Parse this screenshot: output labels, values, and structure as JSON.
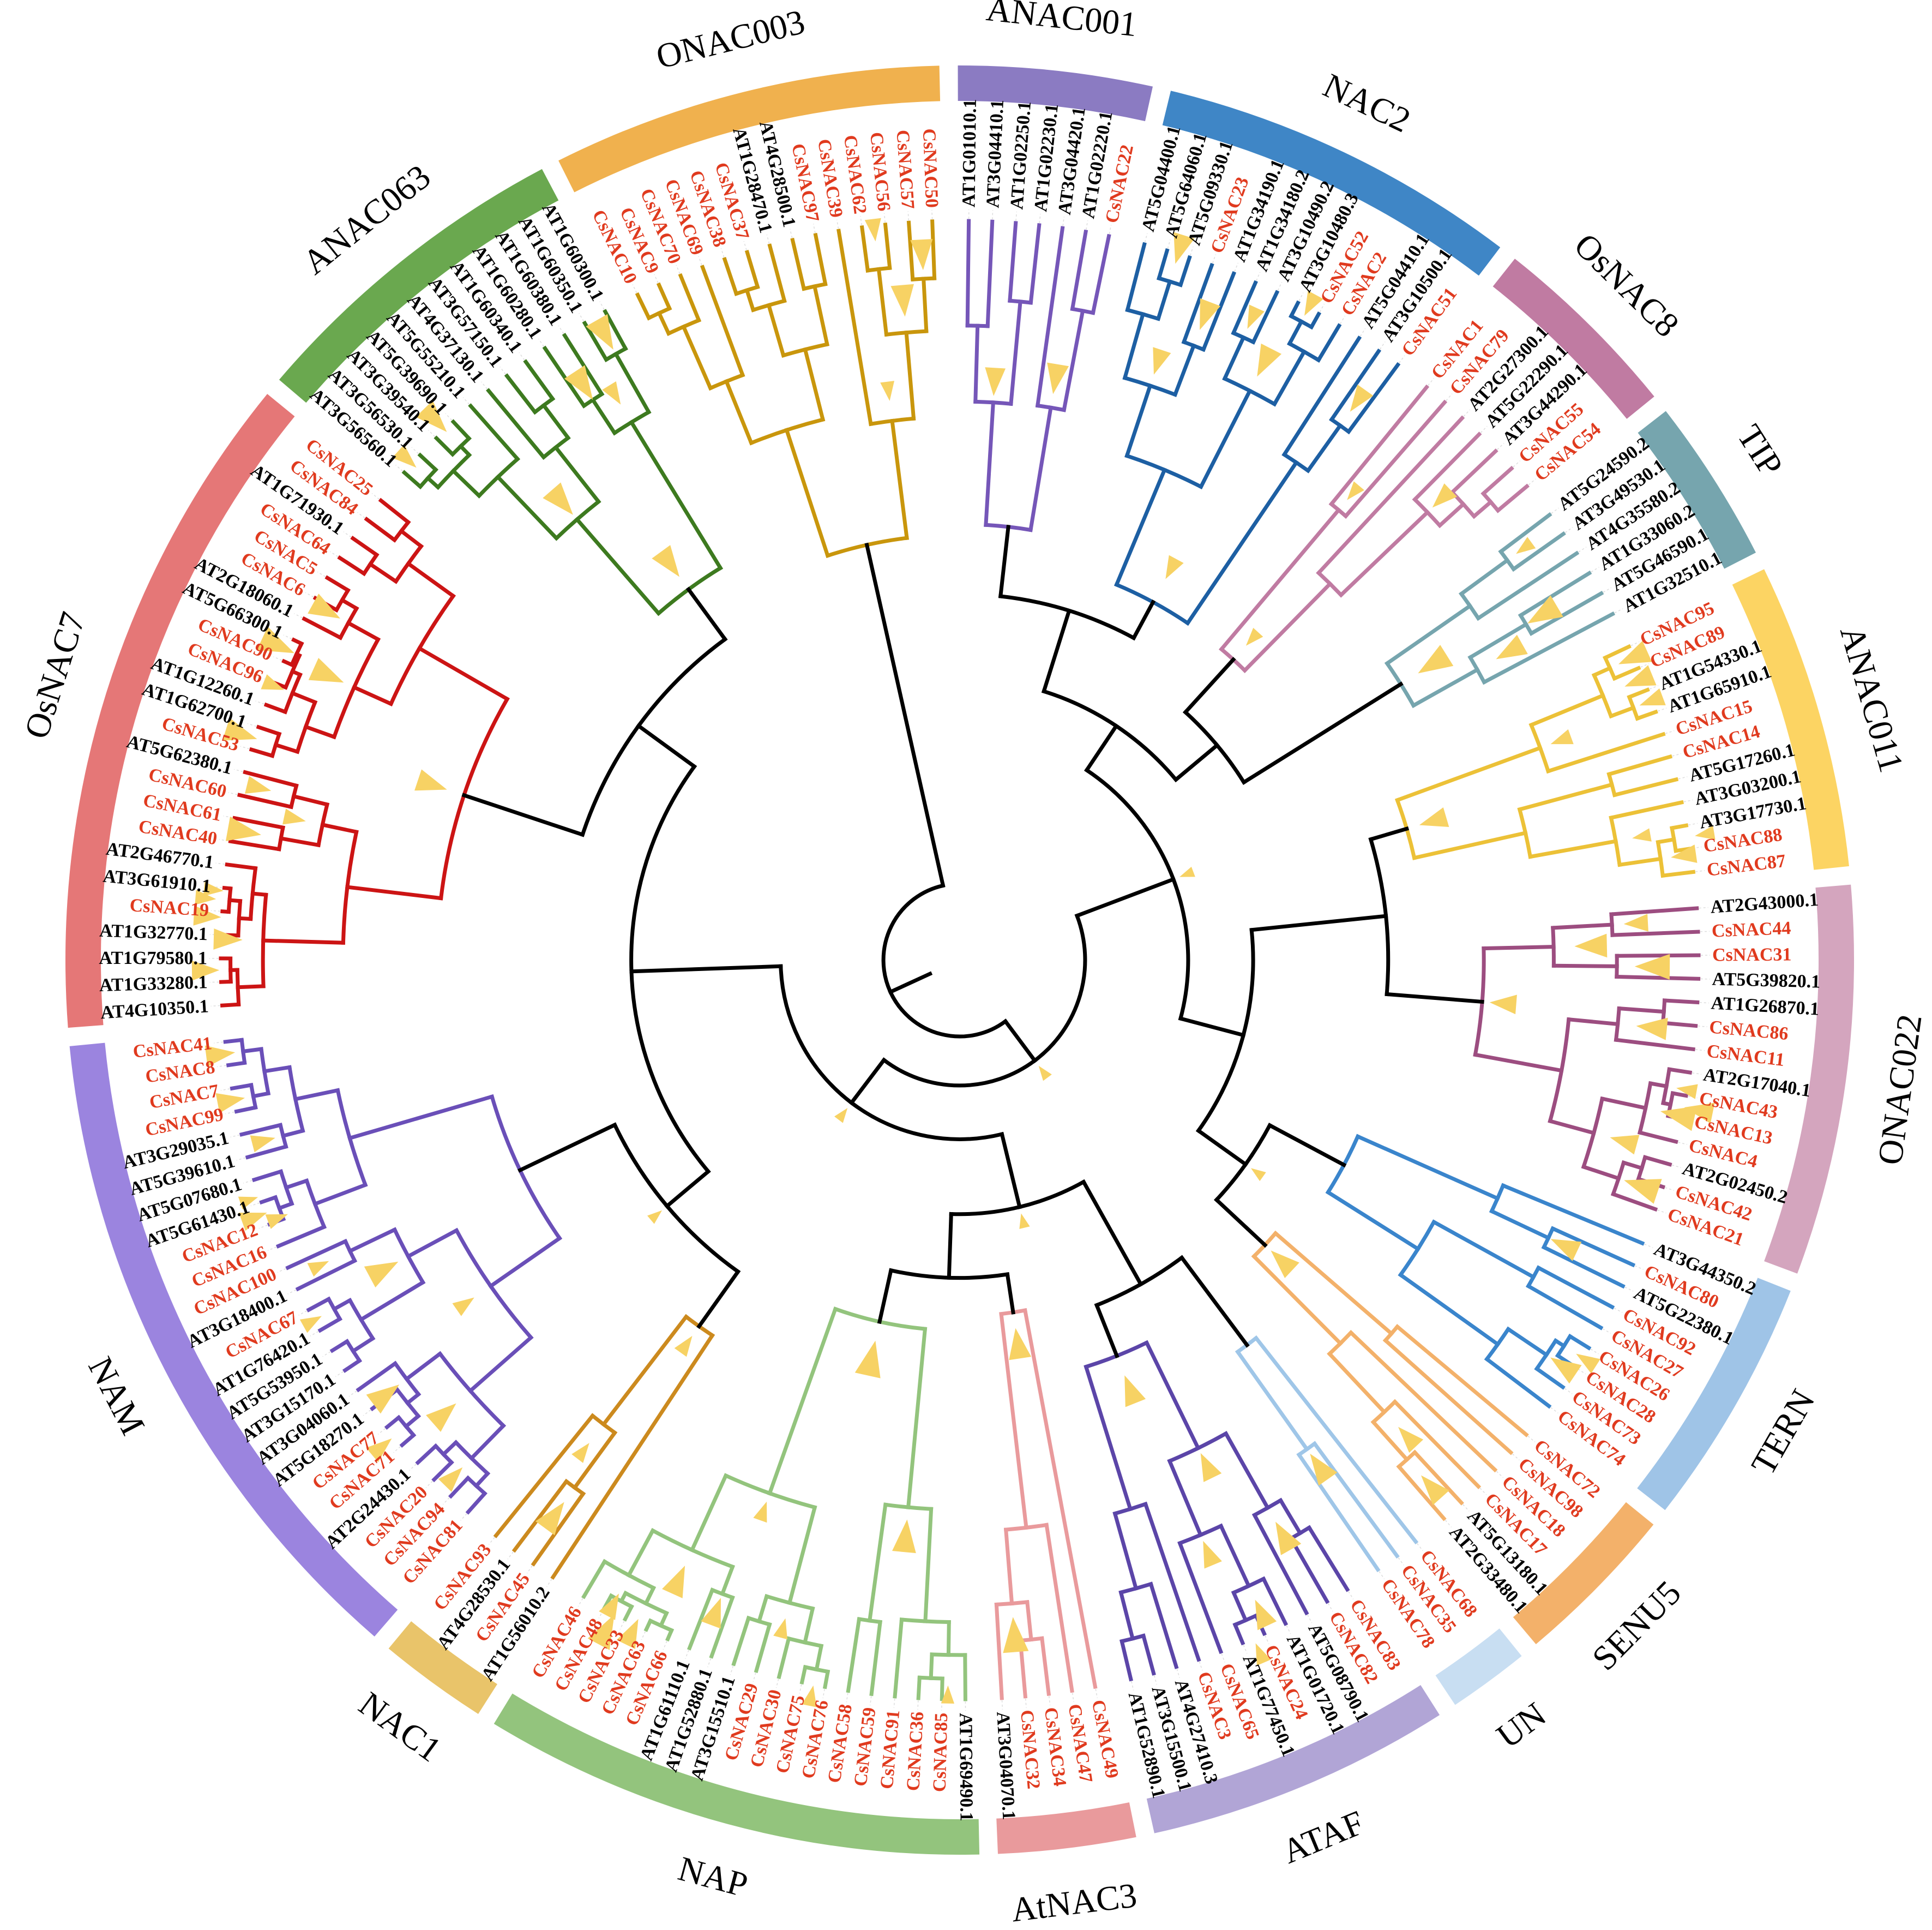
{
  "figure": {
    "type": "circular-phylogenetic-tree",
    "title": "",
    "leaf_colors": {
      "cucumber": "#e03a1e",
      "arabidopsis": "#000000"
    },
    "backbone_color": "#000000",
    "bootstrap_marker_color": "#f7d264"
  },
  "clades": [
    {
      "name": "ANAC001",
      "ring_color": "#8b7bc2",
      "branch_color": "#7556b8",
      "leaves": [
        "AT1G01010.1",
        "AT3G04410.1",
        "AT1G02250.1",
        "AT1G02230.1",
        "AT3G04420.1",
        "AT1G02220.1",
        "CsNAC22"
      ]
    },
    {
      "name": "NAC2",
      "ring_color": "#3f86c6",
      "branch_color": "#1d5fa3",
      "leaves": [
        "AT5G04400.1",
        "AT5G64060.1",
        "AT5G09330.1",
        "CsNAC23",
        "AT1G34190.1",
        "AT1G34180.2",
        "AT3G10490.2",
        "AT3G10480.3",
        "CsNAC52",
        "CsNAC2",
        "AT5G04410.1",
        "AT3G10500.1",
        "CsNAC51"
      ]
    },
    {
      "name": "OsNAC8",
      "ring_color": "#c07ba2",
      "branch_color": "#c07ba2",
      "leaves": [
        "CsNAC1",
        "CsNAC79",
        "AT2G27300.1",
        "AT5G22290.1",
        "AT3G44290.1",
        "CsNAC55",
        "CsNAC54"
      ]
    },
    {
      "name": "TIP",
      "ring_color": "#76a5ae",
      "branch_color": "#76a5ae",
      "leaves": [
        "AT5G24590.2",
        "AT3G49530.1",
        "AT4G35580.2",
        "AT1G33060.2",
        "AT5G46590.1",
        "AT1G32510.1"
      ]
    },
    {
      "name": "ANAC011",
      "ring_color": "#fcd463",
      "branch_color": "#ecc137",
      "leaves": [
        "CsNAC95",
        "CsNAC89",
        "AT1G54330.1",
        "AT1G65910.1",
        "CsNAC15",
        "CsNAC14",
        "AT5G17260.1",
        "AT3G03200.1",
        "AT3G17730.1",
        "CsNAC88",
        "CsNAC87"
      ]
    },
    {
      "name": "ONAC022",
      "ring_color": "#d4a5be",
      "branch_color": "#9c4d80",
      "leaves": [
        "AT2G43000.1",
        "CsNAC44",
        "CsNAC31",
        "AT5G39820.1",
        "AT1G26870.1",
        "CsNAC86",
        "CsNAC11",
        "AT2G17040.1",
        "CsNAC43",
        "CsNAC13",
        "CsNAC4",
        "AT2G02450.2",
        "CsNAC42",
        "CsNAC21"
      ]
    },
    {
      "name": "TERN",
      "ring_color": "#9fc4e7",
      "branch_color": "#3a85cc",
      "leaves": [
        "AT3G44350.2",
        "CsNAC80",
        "AT5G22380.1",
        "CsNAC92",
        "CsNAC27",
        "CsNAC26",
        "CsNAC28",
        "CsNAC73",
        "CsNAC74"
      ]
    },
    {
      "name": "SENU5",
      "ring_color": "#f3b16a",
      "branch_color": "#f3b16a",
      "leaves": [
        "CsNAC72",
        "CsNAC98",
        "CsNAC18",
        "CsNAC17",
        "AT5G13180.1",
        "AT2G33480.1"
      ]
    },
    {
      "name": "UN",
      "ring_color": "#c8def2",
      "branch_color": "#9fc6e8",
      "leaves": [
        "CsNAC68",
        "CsNAC35",
        "CsNAC78"
      ]
    },
    {
      "name": "ATAF",
      "ring_color": "#b1a5d6",
      "branch_color": "#5b45a8",
      "leaves": [
        "CsNAC83",
        "CsNAC82",
        "AT5G08790.1",
        "AT1G01720.1",
        "CsNAC24",
        "AT1G77450.1",
        "CsNAC65",
        "CsNAC3",
        "AT4G27410.3",
        "AT3G15500.1",
        "AT1G52890.1"
      ]
    },
    {
      "name": "AtNAC3",
      "ring_color": "#e99a9c",
      "branch_color": "#e99a9c",
      "leaves": [
        "CsNAC49",
        "CsNAC47",
        "CsNAC34",
        "CsNAC32",
        "AT3G04070.1"
      ]
    },
    {
      "name": "NAP",
      "ring_color": "#93c47d",
      "branch_color": "#93c47d",
      "leaves": [
        "AT1G69490.1",
        "CsNAC85",
        "CsNAC36",
        "CsNAC91",
        "CsNAC59",
        "CsNAC58",
        "CsNAC76",
        "CsNAC75",
        "CsNAC30",
        "CsNAC29",
        "AT3G15510.1",
        "AT1G52880.1",
        "AT1G61110.1",
        "CsNAC66",
        "CsNAC63",
        "CsNAC33",
        "CsNAC48",
        "CsNAC46"
      ]
    },
    {
      "name": "NAC1",
      "ring_color": "#e9c46a",
      "branch_color": "#cc8a1e",
      "leaves": [
        "AT1G56010.2",
        "CsNAC45",
        "AT4G28530.1",
        "CsNAC93"
      ]
    },
    {
      "name": "NAM",
      "ring_color": "#9b84df",
      "branch_color": "#6a4fb8",
      "leaves": [
        "CsNAC81",
        "CsNAC94",
        "CsNAC20",
        "AT2G24430.1",
        "CsNAC71",
        "CsNAC77",
        "AT5G18270.1",
        "AT3G04060.1",
        "AT3G15170.1",
        "AT5G53950.1",
        "AT1G76420.1",
        "CsNAC67",
        "AT3G18400.1",
        "CsNAC100",
        "CsNAC16",
        "CsNAC12",
        "AT5G61430.1",
        "AT5G07680.1",
        "AT5G39610.1",
        "AT3G29035.1",
        "CsNAC99",
        "CsNAC7",
        "CsNAC8",
        "CsNAC41"
      ]
    },
    {
      "name": "OsNAC7",
      "ring_color": "#e57777",
      "branch_color": "#cc1414",
      "leaves": [
        "AT4G10350.1",
        "AT1G33280.1",
        "AT1G79580.1",
        "AT1G32770.1",
        "CsNAC19",
        "AT3G61910.1",
        "AT2G46770.1",
        "CsNAC40",
        "CsNAC61",
        "CsNAC60",
        "AT5G62380.1",
        "CsNAC53",
        "AT1G62700.1",
        "AT1G12260.1",
        "CsNAC96",
        "CsNAC90",
        "AT5G66300.1",
        "AT2G18060.1",
        "CsNAC6",
        "CsNAC5",
        "CsNAC64",
        "AT1G71930.1",
        "CsNAC84",
        "CsNAC25"
      ]
    },
    {
      "name": "ANAC063",
      "ring_color": "#6aa84f",
      "branch_color": "#3d7a1f",
      "leaves": [
        "AT3G56560.1",
        "AT3G56530.1",
        "AT3G39540.1",
        "AT5G39690.1",
        "AT5G55210.1",
        "AT4G37130.1",
        "AT3G57150.1",
        "AT1G60340.1",
        "AT1G60280.1",
        "AT1G60380.1",
        "AT1G60350.1",
        "AT1G60300.1"
      ]
    },
    {
      "name": "ONAC003",
      "ring_color": "#f0b14e",
      "branch_color": "#c9960c",
      "leaves": [
        "CsNAC10",
        "CsNAC9",
        "CsNAC70",
        "CsNAC69",
        "CsNAC38",
        "CsNAC37",
        "AT1G28470.1",
        "AT4G28500.1",
        "CsNAC97",
        "CsNAC39",
        "CsNAC62",
        "CsNAC56",
        "CsNAC57",
        "CsNAC50"
      ]
    }
  ]
}
